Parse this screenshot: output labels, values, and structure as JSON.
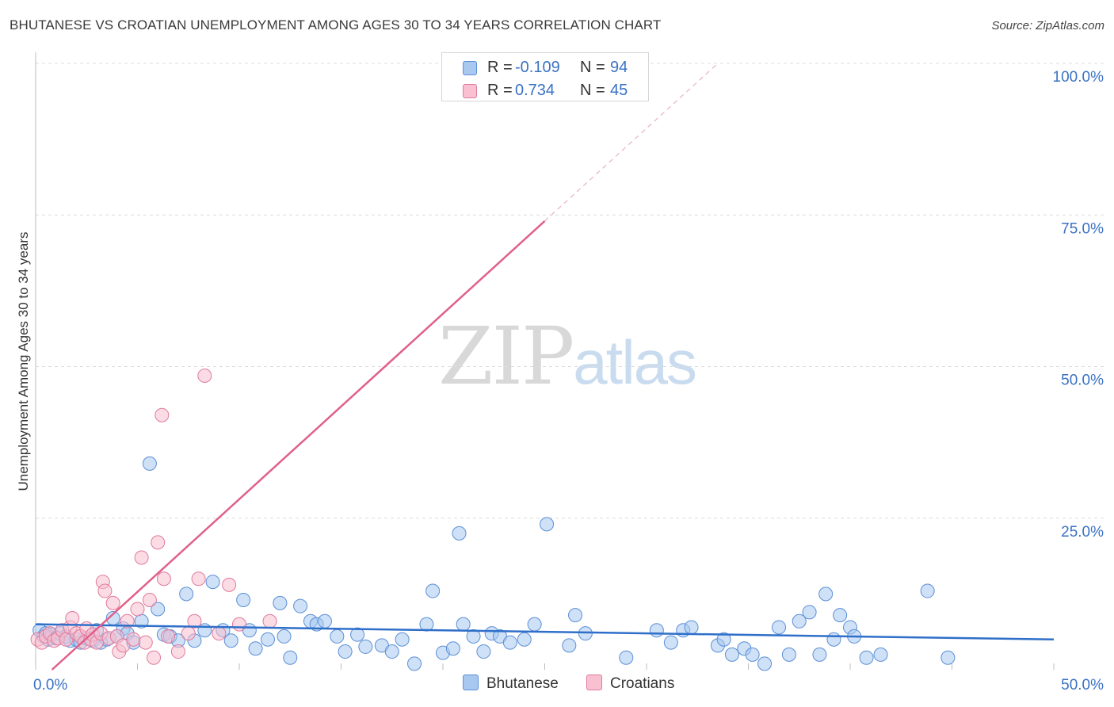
{
  "header": {
    "title": "BHUTANESE VS CROATIAN UNEMPLOYMENT AMONG AGES 30 TO 34 YEARS CORRELATION CHART",
    "source": "Source: ZipAtlas.com"
  },
  "watermark": {
    "zip": "ZIP",
    "atlas": "atlas"
  },
  "legend": {
    "rows": [
      {
        "name": "Bhutanese",
        "r_label": "R =",
        "r_value": "-0.109",
        "n_label": "N =",
        "n_value": "94",
        "color": "#a8c8f0",
        "stroke": "#5b8fd6"
      },
      {
        "name": "Croatians",
        "r_label": "R =",
        "r_value": "0.734",
        "n_label": "N =",
        "n_value": "45",
        "color": "#f8c0d0",
        "stroke": "#e07a9c"
      }
    ]
  },
  "chart_data": {
    "type": "scatter",
    "title": "BHUTANESE VS CROATIAN UNEMPLOYMENT AMONG AGES 30 TO 34 YEARS CORRELATION CHART",
    "xlabel": "",
    "ylabel": "Unemployment Among Ages 30 to 34 years",
    "xlim": [
      0,
      50
    ],
    "ylim": [
      0,
      100
    ],
    "x_tick_labels": [
      "0.0%",
      "50.0%"
    ],
    "y_tick_labels": [
      "25.0%",
      "50.0%",
      "75.0%",
      "100.0%"
    ],
    "y_ticks": [
      25,
      50,
      75,
      100
    ],
    "grid": true,
    "series": [
      {
        "name": "Bhutanese",
        "color": "#a8c8f0",
        "stroke": "#5b8fd6",
        "trend": {
          "x": [
            0,
            50
          ],
          "y": [
            7.5,
            5.0
          ],
          "color": "#2f6fc9"
        },
        "points": [
          [
            0.2,
            6.5
          ],
          [
            0.4,
            5.5
          ],
          [
            0.5,
            6.0
          ],
          [
            0.6,
            5.0
          ],
          [
            0.8,
            5.8
          ],
          [
            1.0,
            5.2
          ],
          [
            1.2,
            6.0
          ],
          [
            1.5,
            5.5
          ],
          [
            1.7,
            4.8
          ],
          [
            2.0,
            5.0
          ],
          [
            2.2,
            4.5
          ],
          [
            2.5,
            5.2
          ],
          [
            2.8,
            4.8
          ],
          [
            3.0,
            6.5
          ],
          [
            3.2,
            4.5
          ],
          [
            3.5,
            5.0
          ],
          [
            3.8,
            8.5
          ],
          [
            4.0,
            5.5
          ],
          [
            4.3,
            6.8
          ],
          [
            4.5,
            6.0
          ],
          [
            4.8,
            4.5
          ],
          [
            5.2,
            8.0
          ],
          [
            5.6,
            34.0
          ],
          [
            6.0,
            10.0
          ],
          [
            6.3,
            5.8
          ],
          [
            6.6,
            5.5
          ],
          [
            7.0,
            4.8
          ],
          [
            7.4,
            12.5
          ],
          [
            7.8,
            4.8
          ],
          [
            8.3,
            6.5
          ],
          [
            8.7,
            14.5
          ],
          [
            9.2,
            6.5
          ],
          [
            9.6,
            4.8
          ],
          [
            10.2,
            11.5
          ],
          [
            10.5,
            6.5
          ],
          [
            10.8,
            3.5
          ],
          [
            11.4,
            5.0
          ],
          [
            12.0,
            11.0
          ],
          [
            12.2,
            5.5
          ],
          [
            12.5,
            2.0
          ],
          [
            13.0,
            10.5
          ],
          [
            13.5,
            8.0
          ],
          [
            13.8,
            7.5
          ],
          [
            14.2,
            8.0
          ],
          [
            14.8,
            5.5
          ],
          [
            15.2,
            3.0
          ],
          [
            15.8,
            5.8
          ],
          [
            16.2,
            3.8
          ],
          [
            17.0,
            4.0
          ],
          [
            17.5,
            3.0
          ],
          [
            18.0,
            5.0
          ],
          [
            18.6,
            1.0
          ],
          [
            19.2,
            7.5
          ],
          [
            19.5,
            13.0
          ],
          [
            20.0,
            2.8
          ],
          [
            20.5,
            3.5
          ],
          [
            20.8,
            22.5
          ],
          [
            21.0,
            7.5
          ],
          [
            21.5,
            5.5
          ],
          [
            22.0,
            3.0
          ],
          [
            22.4,
            6.0
          ],
          [
            22.8,
            5.5
          ],
          [
            23.3,
            4.5
          ],
          [
            24.0,
            5.0
          ],
          [
            24.5,
            7.5
          ],
          [
            25.1,
            24.0
          ],
          [
            26.2,
            4.0
          ],
          [
            26.5,
            9.0
          ],
          [
            27.0,
            6.0
          ],
          [
            29.0,
            2.0
          ],
          [
            30.5,
            6.5
          ],
          [
            31.2,
            4.5
          ],
          [
            31.8,
            6.5
          ],
          [
            32.2,
            7.0
          ],
          [
            33.5,
            4.0
          ],
          [
            33.8,
            5.0
          ],
          [
            34.2,
            2.5
          ],
          [
            34.8,
            3.5
          ],
          [
            35.2,
            2.5
          ],
          [
            35.8,
            1.0
          ],
          [
            36.5,
            7.0
          ],
          [
            37.0,
            2.5
          ],
          [
            37.5,
            8.0
          ],
          [
            38.0,
            9.5
          ],
          [
            38.5,
            2.5
          ],
          [
            38.8,
            12.5
          ],
          [
            39.2,
            5.0
          ],
          [
            39.5,
            9.0
          ],
          [
            40.0,
            7.0
          ],
          [
            40.2,
            5.5
          ],
          [
            40.8,
            2.0
          ],
          [
            41.5,
            2.5
          ],
          [
            43.8,
            13.0
          ],
          [
            44.8,
            2.0
          ]
        ]
      },
      {
        "name": "Croatians",
        "color": "#f8c0d0",
        "stroke": "#e07a9c",
        "trend": {
          "x": [
            0.8,
            25.0
          ],
          "y": [
            0.0,
            74.0
          ],
          "dashed_to": [
            33.5,
            100.0
          ],
          "color": "#e0608a"
        },
        "points": [
          [
            0.1,
            5.0
          ],
          [
            0.3,
            4.5
          ],
          [
            0.5,
            5.5
          ],
          [
            0.7,
            6.0
          ],
          [
            0.9,
            4.8
          ],
          [
            1.1,
            5.2
          ],
          [
            1.3,
            6.5
          ],
          [
            1.5,
            5.0
          ],
          [
            1.7,
            7.0
          ],
          [
            1.8,
            8.5
          ],
          [
            2.0,
            6.0
          ],
          [
            2.2,
            5.5
          ],
          [
            2.4,
            4.5
          ],
          [
            2.5,
            6.8
          ],
          [
            2.7,
            5.0
          ],
          [
            2.8,
            5.8
          ],
          [
            3.0,
            4.5
          ],
          [
            3.2,
            6.0
          ],
          [
            3.3,
            14.5
          ],
          [
            3.4,
            13.0
          ],
          [
            3.6,
            5.2
          ],
          [
            3.8,
            11.0
          ],
          [
            4.0,
            5.5
          ],
          [
            4.1,
            3.0
          ],
          [
            4.3,
            4.0
          ],
          [
            4.5,
            8.0
          ],
          [
            4.8,
            5.0
          ],
          [
            5.0,
            10.0
          ],
          [
            5.2,
            18.5
          ],
          [
            5.4,
            4.5
          ],
          [
            5.6,
            11.5
          ],
          [
            5.8,
            2.0
          ],
          [
            6.0,
            21.0
          ],
          [
            6.2,
            42.0
          ],
          [
            6.3,
            15.0
          ],
          [
            6.5,
            5.5
          ],
          [
            7.0,
            3.0
          ],
          [
            7.5,
            6.0
          ],
          [
            7.8,
            8.0
          ],
          [
            8.0,
            15.0
          ],
          [
            8.3,
            48.5
          ],
          [
            9.0,
            6.0
          ],
          [
            9.5,
            14.0
          ],
          [
            10.0,
            7.5
          ],
          [
            11.5,
            8.0
          ]
        ]
      }
    ]
  }
}
